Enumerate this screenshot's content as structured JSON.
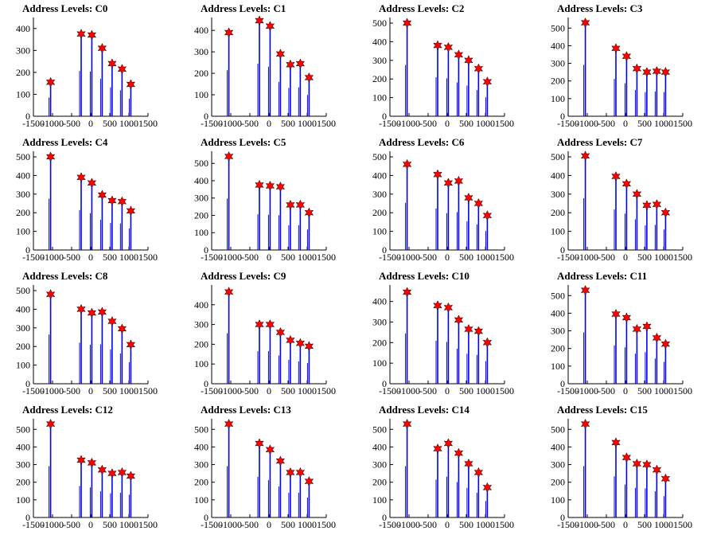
{
  "chart_data": [
    {
      "type": "bar",
      "title": "Address Levels: C0",
      "xlim": [
        -1500,
        1500
      ],
      "ylim": [
        0,
        450
      ],
      "yticks": [
        0,
        100,
        200,
        300,
        400
      ],
      "xticks": [
        -1500,
        -1000,
        -500,
        0,
        500,
        1000,
        1500
      ],
      "peaks": [
        {
          "x": -1050,
          "y": 155
        },
        {
          "x": -250,
          "y": 375
        },
        {
          "x": 30,
          "y": 370
        },
        {
          "x": 300,
          "y": 310
        },
        {
          "x": 560,
          "y": 240
        },
        {
          "x": 820,
          "y": 215
        },
        {
          "x": 1050,
          "y": 145
        }
      ]
    },
    {
      "type": "bar",
      "title": "Address Levels: C1",
      "xlim": [
        -1500,
        1500
      ],
      "ylim": [
        0,
        460
      ],
      "yticks": [
        0,
        100,
        200,
        300,
        400
      ],
      "xticks": [
        -1500,
        -1000,
        -500,
        0,
        500,
        1000,
        1500
      ],
      "peaks": [
        {
          "x": -1050,
          "y": 390
        },
        {
          "x": -250,
          "y": 445
        },
        {
          "x": 30,
          "y": 420
        },
        {
          "x": 300,
          "y": 290
        },
        {
          "x": 560,
          "y": 240
        },
        {
          "x": 820,
          "y": 245
        },
        {
          "x": 1050,
          "y": 180
        }
      ]
    },
    {
      "type": "bar",
      "title": "Address Levels: C2",
      "xlim": [
        -1500,
        1500
      ],
      "ylim": [
        0,
        530
      ],
      "yticks": [
        0,
        100,
        200,
        300,
        400,
        500
      ],
      "xticks": [
        -1500,
        -1000,
        -500,
        0,
        500,
        1000,
        1500
      ],
      "peaks": [
        {
          "x": -1050,
          "y": 500
        },
        {
          "x": -250,
          "y": 380
        },
        {
          "x": 30,
          "y": 370
        },
        {
          "x": 300,
          "y": 330
        },
        {
          "x": 560,
          "y": 300
        },
        {
          "x": 820,
          "y": 255
        },
        {
          "x": 1050,
          "y": 185
        }
      ]
    },
    {
      "type": "bar",
      "title": "Address Levels: C3",
      "xlim": [
        -1500,
        1500
      ],
      "ylim": [
        0,
        560
      ],
      "yticks": [
        0,
        100,
        200,
        300,
        400,
        500
      ],
      "xticks": [
        -1500,
        -1000,
        -500,
        0,
        500,
        1000,
        1500
      ],
      "peaks": [
        {
          "x": -1050,
          "y": 530
        },
        {
          "x": -250,
          "y": 385
        },
        {
          "x": 30,
          "y": 340
        },
        {
          "x": 300,
          "y": 270
        },
        {
          "x": 560,
          "y": 250
        },
        {
          "x": 820,
          "y": 255
        },
        {
          "x": 1050,
          "y": 250
        }
      ]
    },
    {
      "type": "bar",
      "title": "Address Levels: C4",
      "xlim": [
        -1500,
        1500
      ],
      "ylim": [
        0,
        530
      ],
      "yticks": [
        0,
        100,
        200,
        300,
        400,
        500
      ],
      "xticks": [
        -1500,
        -1000,
        -500,
        0,
        500,
        1000,
        1500
      ],
      "peaks": [
        {
          "x": -1050,
          "y": 500
        },
        {
          "x": -250,
          "y": 390
        },
        {
          "x": 30,
          "y": 360
        },
        {
          "x": 300,
          "y": 295
        },
        {
          "x": 560,
          "y": 265
        },
        {
          "x": 820,
          "y": 260
        },
        {
          "x": 1050,
          "y": 210
        }
      ]
    },
    {
      "type": "bar",
      "title": "Address Levels: C5",
      "xlim": [
        -1500,
        1500
      ],
      "ylim": [
        0,
        570
      ],
      "yticks": [
        0,
        100,
        200,
        300,
        400,
        500
      ],
      "xticks": [
        -1500,
        -1000,
        -500,
        0,
        500,
        1000,
        1500
      ],
      "peaks": [
        {
          "x": -1050,
          "y": 540
        },
        {
          "x": -250,
          "y": 375
        },
        {
          "x": 30,
          "y": 370
        },
        {
          "x": 300,
          "y": 365
        },
        {
          "x": 560,
          "y": 260
        },
        {
          "x": 820,
          "y": 260
        },
        {
          "x": 1050,
          "y": 215
        }
      ]
    },
    {
      "type": "bar",
      "title": "Address Levels: C6",
      "xlim": [
        -1500,
        1500
      ],
      "ylim": [
        0,
        530
      ],
      "yticks": [
        0,
        100,
        200,
        300,
        400,
        500
      ],
      "xticks": [
        -1500,
        -1000,
        -500,
        0,
        500,
        1000,
        1500
      ],
      "peaks": [
        {
          "x": -1050,
          "y": 460
        },
        {
          "x": -250,
          "y": 405
        },
        {
          "x": 30,
          "y": 360
        },
        {
          "x": 300,
          "y": 370
        },
        {
          "x": 560,
          "y": 280
        },
        {
          "x": 820,
          "y": 250
        },
        {
          "x": 1050,
          "y": 185
        }
      ]
    },
    {
      "type": "bar",
      "title": "Address Levels: C7",
      "xlim": [
        -1500,
        1500
      ],
      "ylim": [
        0,
        530
      ],
      "yticks": [
        0,
        100,
        200,
        300,
        400,
        500
      ],
      "xticks": [
        -1500,
        -1000,
        -500,
        0,
        500,
        1000,
        1500
      ],
      "peaks": [
        {
          "x": -1050,
          "y": 505
        },
        {
          "x": -250,
          "y": 395
        },
        {
          "x": 30,
          "y": 355
        },
        {
          "x": 300,
          "y": 300
        },
        {
          "x": 560,
          "y": 240
        },
        {
          "x": 820,
          "y": 245
        },
        {
          "x": 1050,
          "y": 200
        }
      ]
    },
    {
      "type": "bar",
      "title": "Address Levels: C8",
      "xlim": [
        -1500,
        1500
      ],
      "ylim": [
        0,
        530
      ],
      "yticks": [
        0,
        100,
        200,
        300,
        400,
        500
      ],
      "xticks": [
        -1500,
        -1000,
        -500,
        0,
        500,
        1000,
        1500
      ],
      "peaks": [
        {
          "x": -1050,
          "y": 480
        },
        {
          "x": -250,
          "y": 400
        },
        {
          "x": 30,
          "y": 380
        },
        {
          "x": 300,
          "y": 385
        },
        {
          "x": 560,
          "y": 335
        },
        {
          "x": 820,
          "y": 295
        },
        {
          "x": 1050,
          "y": 210
        }
      ]
    },
    {
      "type": "bar",
      "title": "Address Levels: C9",
      "xlim": [
        -1500,
        1500
      ],
      "ylim": [
        0,
        500
      ],
      "yticks": [
        0,
        100,
        200,
        300,
        400
      ],
      "xticks": [
        -1500,
        -1000,
        -500,
        0,
        500,
        1000,
        1500
      ],
      "peaks": [
        {
          "x": -1050,
          "y": 465
        },
        {
          "x": -250,
          "y": 300
        },
        {
          "x": 30,
          "y": 300
        },
        {
          "x": 300,
          "y": 260
        },
        {
          "x": 560,
          "y": 220
        },
        {
          "x": 820,
          "y": 205
        },
        {
          "x": 1050,
          "y": 190
        }
      ]
    },
    {
      "type": "bar",
      "title": "Address Levels: C10",
      "xlim": [
        -1500,
        1500
      ],
      "ylim": [
        0,
        480
      ],
      "yticks": [
        0,
        100,
        200,
        300,
        400
      ],
      "xticks": [
        -1500,
        -1000,
        -500,
        0,
        500,
        1000,
        1500
      ],
      "peaks": [
        {
          "x": -1050,
          "y": 445
        },
        {
          "x": -250,
          "y": 380
        },
        {
          "x": 30,
          "y": 370
        },
        {
          "x": 300,
          "y": 310
        },
        {
          "x": 560,
          "y": 265
        },
        {
          "x": 820,
          "y": 255
        },
        {
          "x": 1050,
          "y": 200
        }
      ]
    },
    {
      "type": "bar",
      "title": "Address Levels: C11",
      "xlim": [
        -1500,
        1500
      ],
      "ylim": [
        0,
        560
      ],
      "yticks": [
        0,
        100,
        200,
        300,
        400,
        500
      ],
      "xticks": [
        -1500,
        -1000,
        -500,
        0,
        500,
        1000,
        1500
      ],
      "peaks": [
        {
          "x": -1050,
          "y": 530
        },
        {
          "x": -250,
          "y": 395
        },
        {
          "x": 30,
          "y": 375
        },
        {
          "x": 300,
          "y": 310
        },
        {
          "x": 560,
          "y": 325
        },
        {
          "x": 820,
          "y": 260
        },
        {
          "x": 1050,
          "y": 225
        }
      ]
    },
    {
      "type": "bar",
      "title": "Address Levels: C12",
      "xlim": [
        -1500,
        1500
      ],
      "ylim": [
        0,
        560
      ],
      "yticks": [
        0,
        100,
        200,
        300,
        400,
        500
      ],
      "xticks": [
        -1500,
        -1000,
        -500,
        0,
        500,
        1000,
        1500
      ],
      "peaks": [
        {
          "x": -1050,
          "y": 530
        },
        {
          "x": -250,
          "y": 325
        },
        {
          "x": 30,
          "y": 310
        },
        {
          "x": 300,
          "y": 270
        },
        {
          "x": 560,
          "y": 250
        },
        {
          "x": 820,
          "y": 255
        },
        {
          "x": 1050,
          "y": 235
        }
      ]
    },
    {
      "type": "bar",
      "title": "Address Levels: C13",
      "xlim": [
        -1500,
        1500
      ],
      "ylim": [
        0,
        560
      ],
      "yticks": [
        0,
        100,
        200,
        300,
        400,
        500
      ],
      "xticks": [
        -1500,
        -1000,
        -500,
        0,
        500,
        1000,
        1500
      ],
      "peaks": [
        {
          "x": -1050,
          "y": 530
        },
        {
          "x": -250,
          "y": 420
        },
        {
          "x": 30,
          "y": 385
        },
        {
          "x": 300,
          "y": 320
        },
        {
          "x": 560,
          "y": 255
        },
        {
          "x": 820,
          "y": 255
        },
        {
          "x": 1050,
          "y": 205
        }
      ]
    },
    {
      "type": "bar",
      "title": "Address Levels: C14",
      "xlim": [
        -1500,
        1500
      ],
      "ylim": [
        0,
        560
      ],
      "yticks": [
        0,
        100,
        200,
        300,
        400,
        500
      ],
      "xticks": [
        -1500,
        -1000,
        -500,
        0,
        500,
        1000,
        1500
      ],
      "peaks": [
        {
          "x": -1050,
          "y": 530
        },
        {
          "x": -250,
          "y": 390
        },
        {
          "x": 30,
          "y": 420
        },
        {
          "x": 300,
          "y": 365
        },
        {
          "x": 560,
          "y": 305
        },
        {
          "x": 820,
          "y": 255
        },
        {
          "x": 1050,
          "y": 170
        }
      ]
    },
    {
      "type": "bar",
      "title": "Address Levels: C15",
      "xlim": [
        -1500,
        1500
      ],
      "ylim": [
        0,
        560
      ],
      "yticks": [
        0,
        100,
        200,
        300,
        400,
        500
      ],
      "xticks": [
        -1500,
        -1000,
        -500,
        0,
        500,
        1000,
        1500
      ],
      "peaks": [
        {
          "x": -1050,
          "y": 530
        },
        {
          "x": -250,
          "y": 425
        },
        {
          "x": 30,
          "y": 340
        },
        {
          "x": 300,
          "y": 305
        },
        {
          "x": 560,
          "y": 300
        },
        {
          "x": 820,
          "y": 270
        },
        {
          "x": 1050,
          "y": 220
        }
      ]
    }
  ],
  "colors": {
    "bar": "#0000ff",
    "marker": "#ff0000",
    "axis": "#000000"
  }
}
